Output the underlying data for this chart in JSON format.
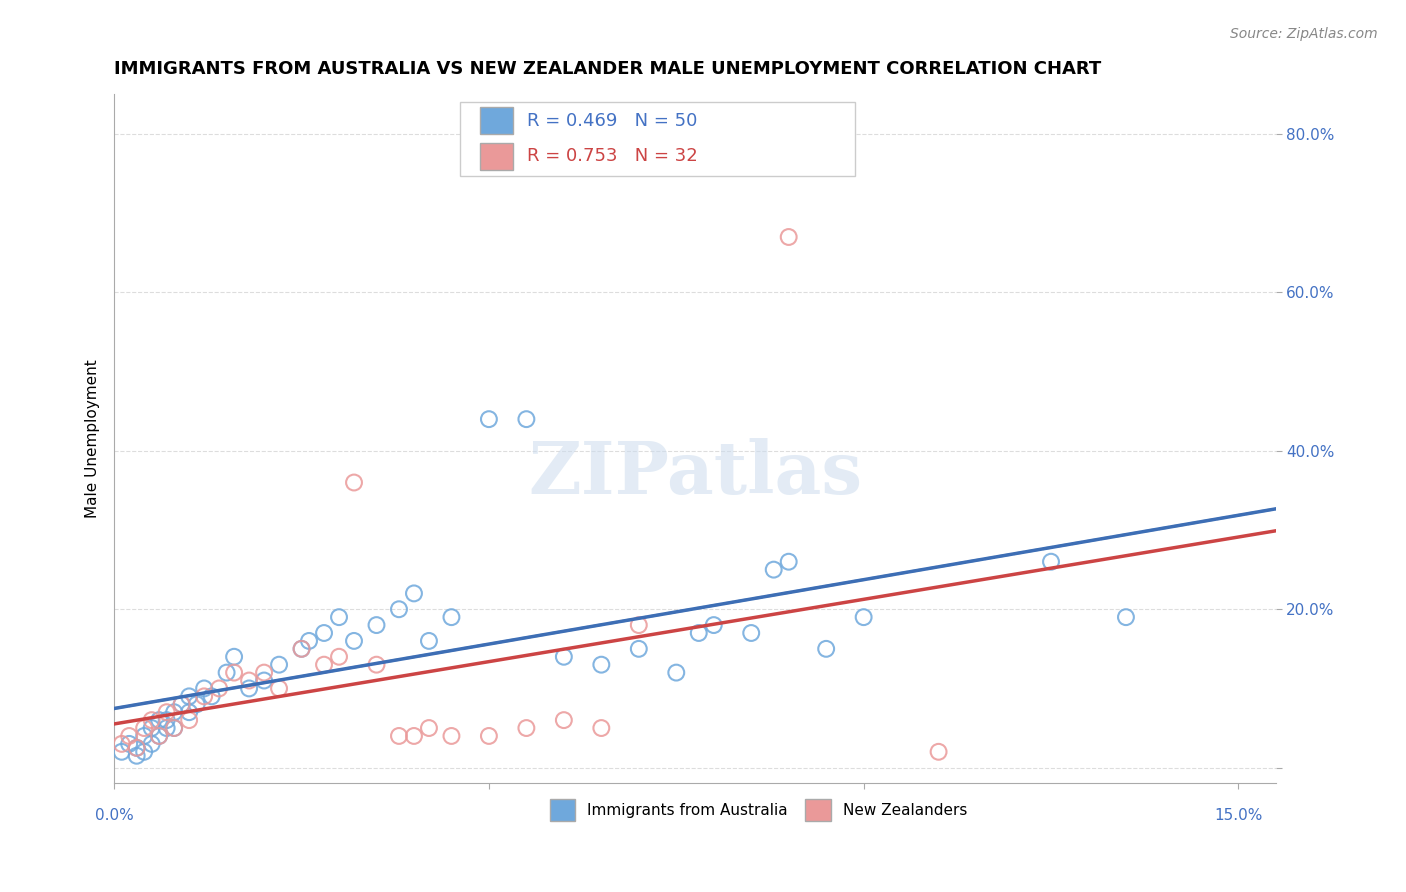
{
  "title": "IMMIGRANTS FROM AUSTRALIA VS NEW ZEALANDER MALE UNEMPLOYMENT CORRELATION CHART",
  "source_text": "Source: ZipAtlas.com",
  "ylabel": "Male Unemployment",
  "y_ticks": [
    0.0,
    0.2,
    0.4,
    0.6,
    0.8
  ],
  "y_tick_labels": [
    "",
    "20.0%",
    "40.0%",
    "60.0%",
    "80.0%"
  ],
  "x_ticks": [
    0.0,
    0.05,
    0.1,
    0.15
  ],
  "xlim": [
    0.0,
    0.155
  ],
  "ylim": [
    -0.02,
    0.85
  ],
  "blue_R": 0.469,
  "blue_N": 50,
  "pink_R": 0.753,
  "pink_N": 32,
  "blue_color": "#6fa8dc",
  "pink_color": "#ea9999",
  "blue_line_color": "#3d6eb5",
  "pink_line_color": "#cc4444",
  "dashed_line_color": "#9ab7d3",
  "watermark": "ZIPatlas",
  "blue_scatter_x": [
    0.001,
    0.002,
    0.003,
    0.003,
    0.004,
    0.004,
    0.005,
    0.005,
    0.006,
    0.006,
    0.007,
    0.007,
    0.008,
    0.008,
    0.009,
    0.01,
    0.01,
    0.011,
    0.012,
    0.013,
    0.015,
    0.016,
    0.018,
    0.02,
    0.022,
    0.025,
    0.026,
    0.028,
    0.03,
    0.032,
    0.035,
    0.038,
    0.04,
    0.042,
    0.045,
    0.05,
    0.055,
    0.06,
    0.065,
    0.07,
    0.075,
    0.078,
    0.08,
    0.085,
    0.088,
    0.09,
    0.095,
    0.1,
    0.125,
    0.135
  ],
  "blue_scatter_y": [
    0.02,
    0.03,
    0.015,
    0.025,
    0.04,
    0.02,
    0.05,
    0.03,
    0.06,
    0.04,
    0.05,
    0.06,
    0.07,
    0.05,
    0.08,
    0.07,
    0.09,
    0.08,
    0.1,
    0.09,
    0.12,
    0.14,
    0.1,
    0.11,
    0.13,
    0.15,
    0.16,
    0.17,
    0.19,
    0.16,
    0.18,
    0.2,
    0.22,
    0.16,
    0.19,
    0.44,
    0.44,
    0.14,
    0.13,
    0.15,
    0.12,
    0.17,
    0.18,
    0.17,
    0.25,
    0.26,
    0.15,
    0.19,
    0.26,
    0.19
  ],
  "pink_scatter_x": [
    0.001,
    0.002,
    0.003,
    0.004,
    0.005,
    0.006,
    0.007,
    0.008,
    0.009,
    0.01,
    0.012,
    0.014,
    0.016,
    0.018,
    0.02,
    0.022,
    0.025,
    0.028,
    0.03,
    0.032,
    0.035,
    0.038,
    0.04,
    0.042,
    0.045,
    0.05,
    0.055,
    0.06,
    0.065,
    0.07,
    0.09,
    0.11
  ],
  "pink_scatter_y": [
    0.03,
    0.04,
    0.025,
    0.05,
    0.06,
    0.04,
    0.07,
    0.05,
    0.08,
    0.06,
    0.09,
    0.1,
    0.12,
    0.11,
    0.12,
    0.1,
    0.15,
    0.13,
    0.14,
    0.36,
    0.13,
    0.04,
    0.04,
    0.05,
    0.04,
    0.04,
    0.05,
    0.06,
    0.05,
    0.18,
    0.67,
    0.02
  ],
  "grid_color": "#dddddd",
  "legend_label_blue": "Immigrants from Australia",
  "legend_label_pink": "New Zealanders"
}
